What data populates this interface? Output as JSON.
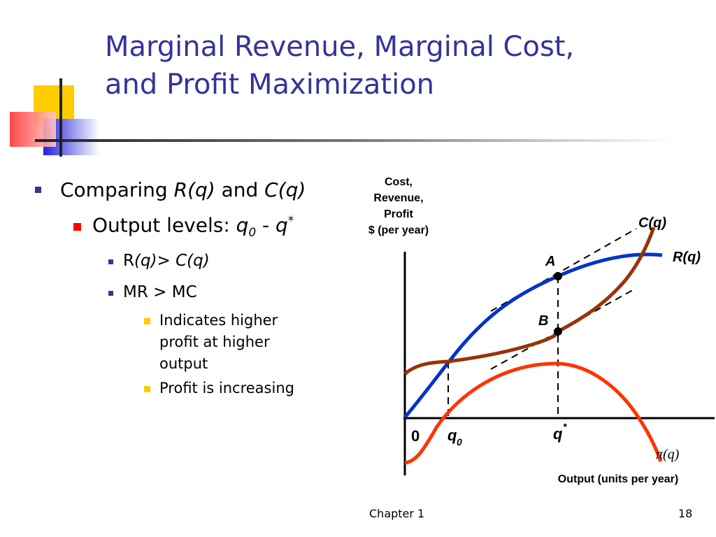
{
  "slide": {
    "title_line1": "Marginal Revenue, Marginal Cost,",
    "title_line2": "and Profit Maximization",
    "footer_chapter": "Chapter 1",
    "footer_page": "18",
    "colors": {
      "title": "#333399",
      "revenue": "#0033cc",
      "cost": "#993300",
      "profit": "#ff3300"
    }
  },
  "bullets": {
    "b1": {
      "prefix": "Comparing ",
      "r": "R(q)",
      "mid": " and ",
      "c": "C(q)"
    },
    "b2": {
      "prefix": "Output levels: ",
      "q": "q",
      "sub": "0",
      "dash": " - ",
      "q2": "q",
      "sup": "*"
    },
    "b3": {
      "r": "R",
      "rest": "(q)> C(q)"
    },
    "b4": {
      "text": "MR > MC"
    },
    "b5": {
      "text": "Indicates higher profit at higher output"
    },
    "b6": {
      "text": "Profit is increasing"
    }
  },
  "chart_data": {
    "type": "line",
    "y_axis_label": [
      "Cost,",
      "Revenue,",
      "Profit",
      "$ (per year)"
    ],
    "x_axis_label": "Output (units per year)",
    "origin_label": "0",
    "series": [
      {
        "name": "R(q)"
      },
      {
        "name": "C(q)"
      },
      {
        "name": "π(q)"
      }
    ],
    "points": [
      {
        "label": "A"
      },
      {
        "label": "B"
      }
    ],
    "x_markers": [
      {
        "label": "q",
        "sub": "0"
      },
      {
        "label": "q",
        "sup": "*"
      }
    ]
  }
}
